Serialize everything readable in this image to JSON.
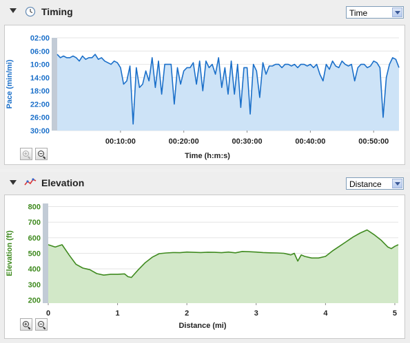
{
  "timing": {
    "title": "Timing",
    "icon": "clock-icon",
    "dropdown_value": "Time",
    "zoom_in": "+",
    "zoom_out": "−"
  },
  "elevation": {
    "title": "Elevation",
    "icon": "elevation-chart-icon",
    "dropdown_value": "Distance",
    "zoom_in": "+",
    "zoom_out": "−"
  },
  "chart_data": [
    {
      "type": "line",
      "ylabel": "Pace (min/mi)",
      "xlabel": "Time (h:m:s)",
      "y_tick_labels": [
        "02:00",
        "06:00",
        "10:00",
        "14:00",
        "18:00",
        "22:00",
        "26:00",
        "30:00"
      ],
      "y_ticks": [
        2,
        6,
        10,
        14,
        18,
        22,
        26,
        30
      ],
      "ylim": [
        2,
        30
      ],
      "y_inverted": true,
      "x_tick_labels": [
        "00:10:00",
        "00:20:00",
        "00:30:00",
        "00:40:00",
        "00:50:00"
      ],
      "x_ticks": [
        10,
        20,
        30,
        40,
        50
      ],
      "xlim": [
        0,
        54
      ],
      "line_color": "#1a6fc9",
      "fill_color": "#cde3f7",
      "grid": true,
      "series": [
        {
          "x": [
            0,
            0.5,
            1,
            1.5,
            2,
            2.5,
            3,
            3.5,
            4,
            4.5,
            5,
            5.5,
            6,
            6.5,
            7,
            7.5,
            8,
            8.5,
            9,
            9.5,
            10,
            10.5,
            11,
            11.5,
            12,
            12.5,
            13,
            13.5,
            14,
            14.5,
            15,
            15.5,
            16,
            16.5,
            17,
            17.5,
            18,
            18.5,
            19,
            19.5,
            20,
            20.5,
            21,
            21.5,
            22,
            22.5,
            23,
            23.5,
            24,
            24.5,
            25,
            25.5,
            26,
            26.5,
            27,
            27.5,
            28,
            28.5,
            29,
            29.5,
            30,
            30.5,
            31,
            31.5,
            32,
            32.5,
            33,
            33.5,
            34,
            34.5,
            35,
            35.5,
            36,
            36.5,
            37,
            37.5,
            38,
            38.5,
            39,
            39.5,
            40,
            40.5,
            41,
            41.5,
            42,
            42.5,
            43,
            43.5,
            44,
            44.5,
            45,
            45.5,
            46,
            46.5,
            47,
            47.5,
            48,
            48.5,
            49,
            49.5,
            50,
            50.5,
            51,
            51.5,
            52,
            52.5,
            53,
            53.5,
            54
          ],
          "y": [
            7,
            8,
            7.5,
            8,
            8,
            7.5,
            8,
            9,
            7.5,
            8.5,
            8,
            8,
            7,
            8.5,
            8,
            9,
            9.5,
            10,
            9,
            9.5,
            11,
            16,
            15,
            10.5,
            28,
            11,
            17,
            16,
            12,
            15,
            8,
            17,
            9,
            19,
            10,
            10,
            10,
            22,
            11,
            16,
            12,
            11,
            11,
            9.5,
            16,
            9,
            18,
            9,
            11,
            10,
            13,
            8,
            17,
            11,
            19,
            9,
            19,
            10,
            23,
            11,
            11,
            25,
            10,
            12,
            20,
            9.5,
            13,
            10.5,
            10.5,
            10,
            10,
            11,
            10,
            10,
            10.5,
            10,
            11,
            10,
            10,
            10.5,
            10,
            11,
            10,
            13,
            15,
            10,
            11.5,
            9,
            10.5,
            11,
            9,
            10,
            10.5,
            10,
            15,
            11,
            10,
            10,
            11,
            10.5,
            9,
            9.5,
            11,
            26,
            14,
            10,
            8,
            8.5,
            11
          ]
        }
      ]
    },
    {
      "type": "area",
      "ylabel": "Elevation (ft)",
      "xlabel": "Distance (mi)",
      "y_ticks": [
        200,
        300,
        400,
        500,
        600,
        700,
        800
      ],
      "ylim": [
        180,
        820
      ],
      "x_ticks": [
        0,
        1,
        2,
        3,
        4,
        5
      ],
      "xlim": [
        0,
        5.05
      ],
      "line_color": "#3f8a1f",
      "fill_color": "#d2e8c8",
      "grid": true,
      "series": [
        {
          "x": [
            0,
            0.1,
            0.2,
            0.3,
            0.4,
            0.5,
            0.6,
            0.7,
            0.8,
            0.9,
            1.0,
            1.1,
            1.15,
            1.2,
            1.3,
            1.4,
            1.5,
            1.6,
            1.7,
            1.8,
            1.9,
            2.0,
            2.1,
            2.2,
            2.3,
            2.4,
            2.5,
            2.6,
            2.7,
            2.8,
            2.9,
            3.0,
            3.1,
            3.2,
            3.3,
            3.4,
            3.5,
            3.55,
            3.6,
            3.65,
            3.7,
            3.8,
            3.9,
            4.0,
            4.1,
            4.2,
            4.3,
            4.4,
            4.5,
            4.6,
            4.7,
            4.8,
            4.9,
            4.95,
            5.0,
            5.05
          ],
          "y": [
            555,
            540,
            555,
            490,
            430,
            405,
            395,
            370,
            360,
            365,
            365,
            368,
            350,
            345,
            395,
            440,
            475,
            498,
            502,
            505,
            504,
            508,
            506,
            505,
            507,
            506,
            504,
            508,
            503,
            512,
            510,
            508,
            505,
            503,
            502,
            500,
            490,
            500,
            450,
            490,
            480,
            470,
            470,
            480,
            515,
            545,
            575,
            605,
            630,
            650,
            620,
            585,
            540,
            530,
            545,
            555
          ]
        }
      ]
    }
  ]
}
